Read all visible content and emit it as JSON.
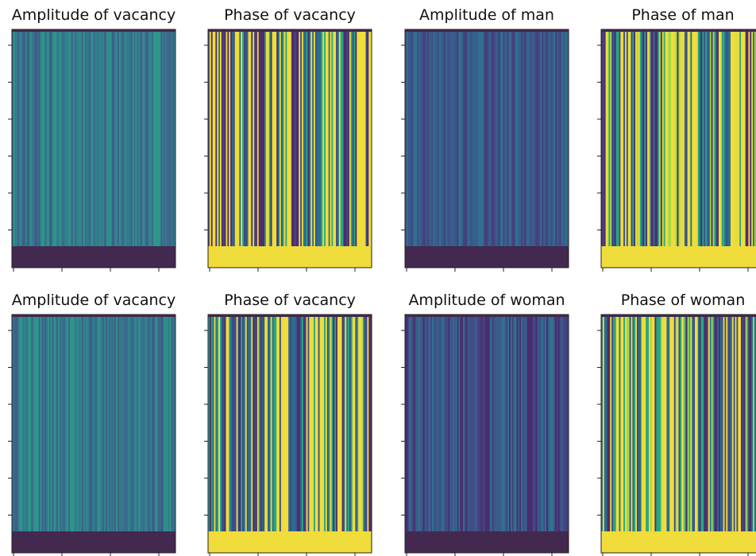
{
  "chart_data": [
    {
      "type": "heatmap",
      "title": "Amplitude of vacancy",
      "colors": [
        "#3b6a8c",
        "#35798d",
        "#2f878d",
        "#3f5f8a",
        "#2e958a"
      ],
      "band_color": "#43284f"
    },
    {
      "type": "heatmap",
      "title": "Phase of vacancy",
      "colors": [
        "#f0dc3a",
        "#f0dc3a",
        "#f0dc3a",
        "#2a6f8e",
        "#3e4c8a",
        "#26a784",
        "#4f2d6f"
      ],
      "band_color": "#f0dc3a"
    },
    {
      "type": "heatmap",
      "title": "Amplitude of man",
      "colors": [
        "#3a5d8b",
        "#3f4f89",
        "#365f8c",
        "#31718d",
        "#46407f"
      ],
      "band_color": "#43284f"
    },
    {
      "type": "heatmap",
      "title": "Phase of man",
      "colors": [
        "#f0dc3a",
        "#f0dc3a",
        "#e0de3c",
        "#2a6f8e",
        "#3e4c8a",
        "#26a784",
        "#4f2d6f",
        "#a6d84a"
      ],
      "band_color": "#f0dc3a"
    },
    {
      "type": "heatmap",
      "title": "Amplitude of vacancy",
      "colors": [
        "#3b6a8c",
        "#35798d",
        "#2f878d",
        "#3f5f8a",
        "#2e958a"
      ],
      "band_color": "#43284f"
    },
    {
      "type": "heatmap",
      "title": "Phase of vacancy",
      "colors": [
        "#f0dc3a",
        "#f0dc3a",
        "#f0dc3a",
        "#2a6f8e",
        "#3e4c8a",
        "#26a784",
        "#4f2d6f"
      ],
      "band_color": "#f0dc3a"
    },
    {
      "type": "heatmap",
      "title": "Amplitude of woman",
      "colors": [
        "#3f4f89",
        "#45417f",
        "#3a5d8b",
        "#482e70",
        "#31718d"
      ],
      "band_color": "#43284f"
    },
    {
      "type": "heatmap",
      "title": "Phase of woman",
      "colors": [
        "#f0dc3a",
        "#f0dc3a",
        "#2a6f8e",
        "#3e4c8a",
        "#26a784",
        "#4f2d6f",
        "#a6d84a"
      ],
      "band_color": "#f0dc3a"
    }
  ]
}
